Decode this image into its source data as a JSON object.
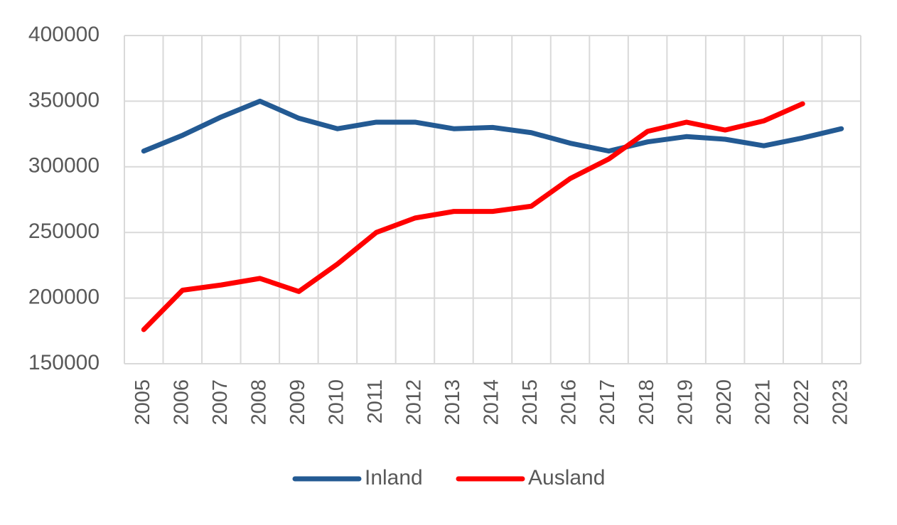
{
  "chart_data": {
    "type": "line",
    "categories": [
      "2005",
      "2006",
      "2007",
      "2008",
      "2009",
      "2010",
      "2011",
      "2012",
      "2013",
      "2014",
      "2015",
      "2016",
      "2017",
      "2018",
      "2019",
      "2020",
      "2021",
      "2022",
      "2023"
    ],
    "series": [
      {
        "name": "Inland",
        "color": "#235a93",
        "values": [
          312000,
          324000,
          338000,
          350000,
          337000,
          329000,
          334000,
          334000,
          329000,
          330000,
          326000,
          318000,
          312000,
          319000,
          323000,
          321000,
          316000,
          322000,
          329000
        ]
      },
      {
        "name": "Ausland",
        "color": "#ff0000",
        "values": [
          176000,
          206000,
          210000,
          215000,
          205000,
          226000,
          250000,
          261000,
          266000,
          266000,
          270000,
          291000,
          306000,
          327000,
          334000,
          328000,
          335000,
          348000,
          null
        ]
      }
    ],
    "ylim": [
      150000,
      400000
    ],
    "yticks": [
      150000,
      200000,
      250000,
      300000,
      350000,
      400000
    ],
    "grid": true,
    "legend": "bottom"
  }
}
